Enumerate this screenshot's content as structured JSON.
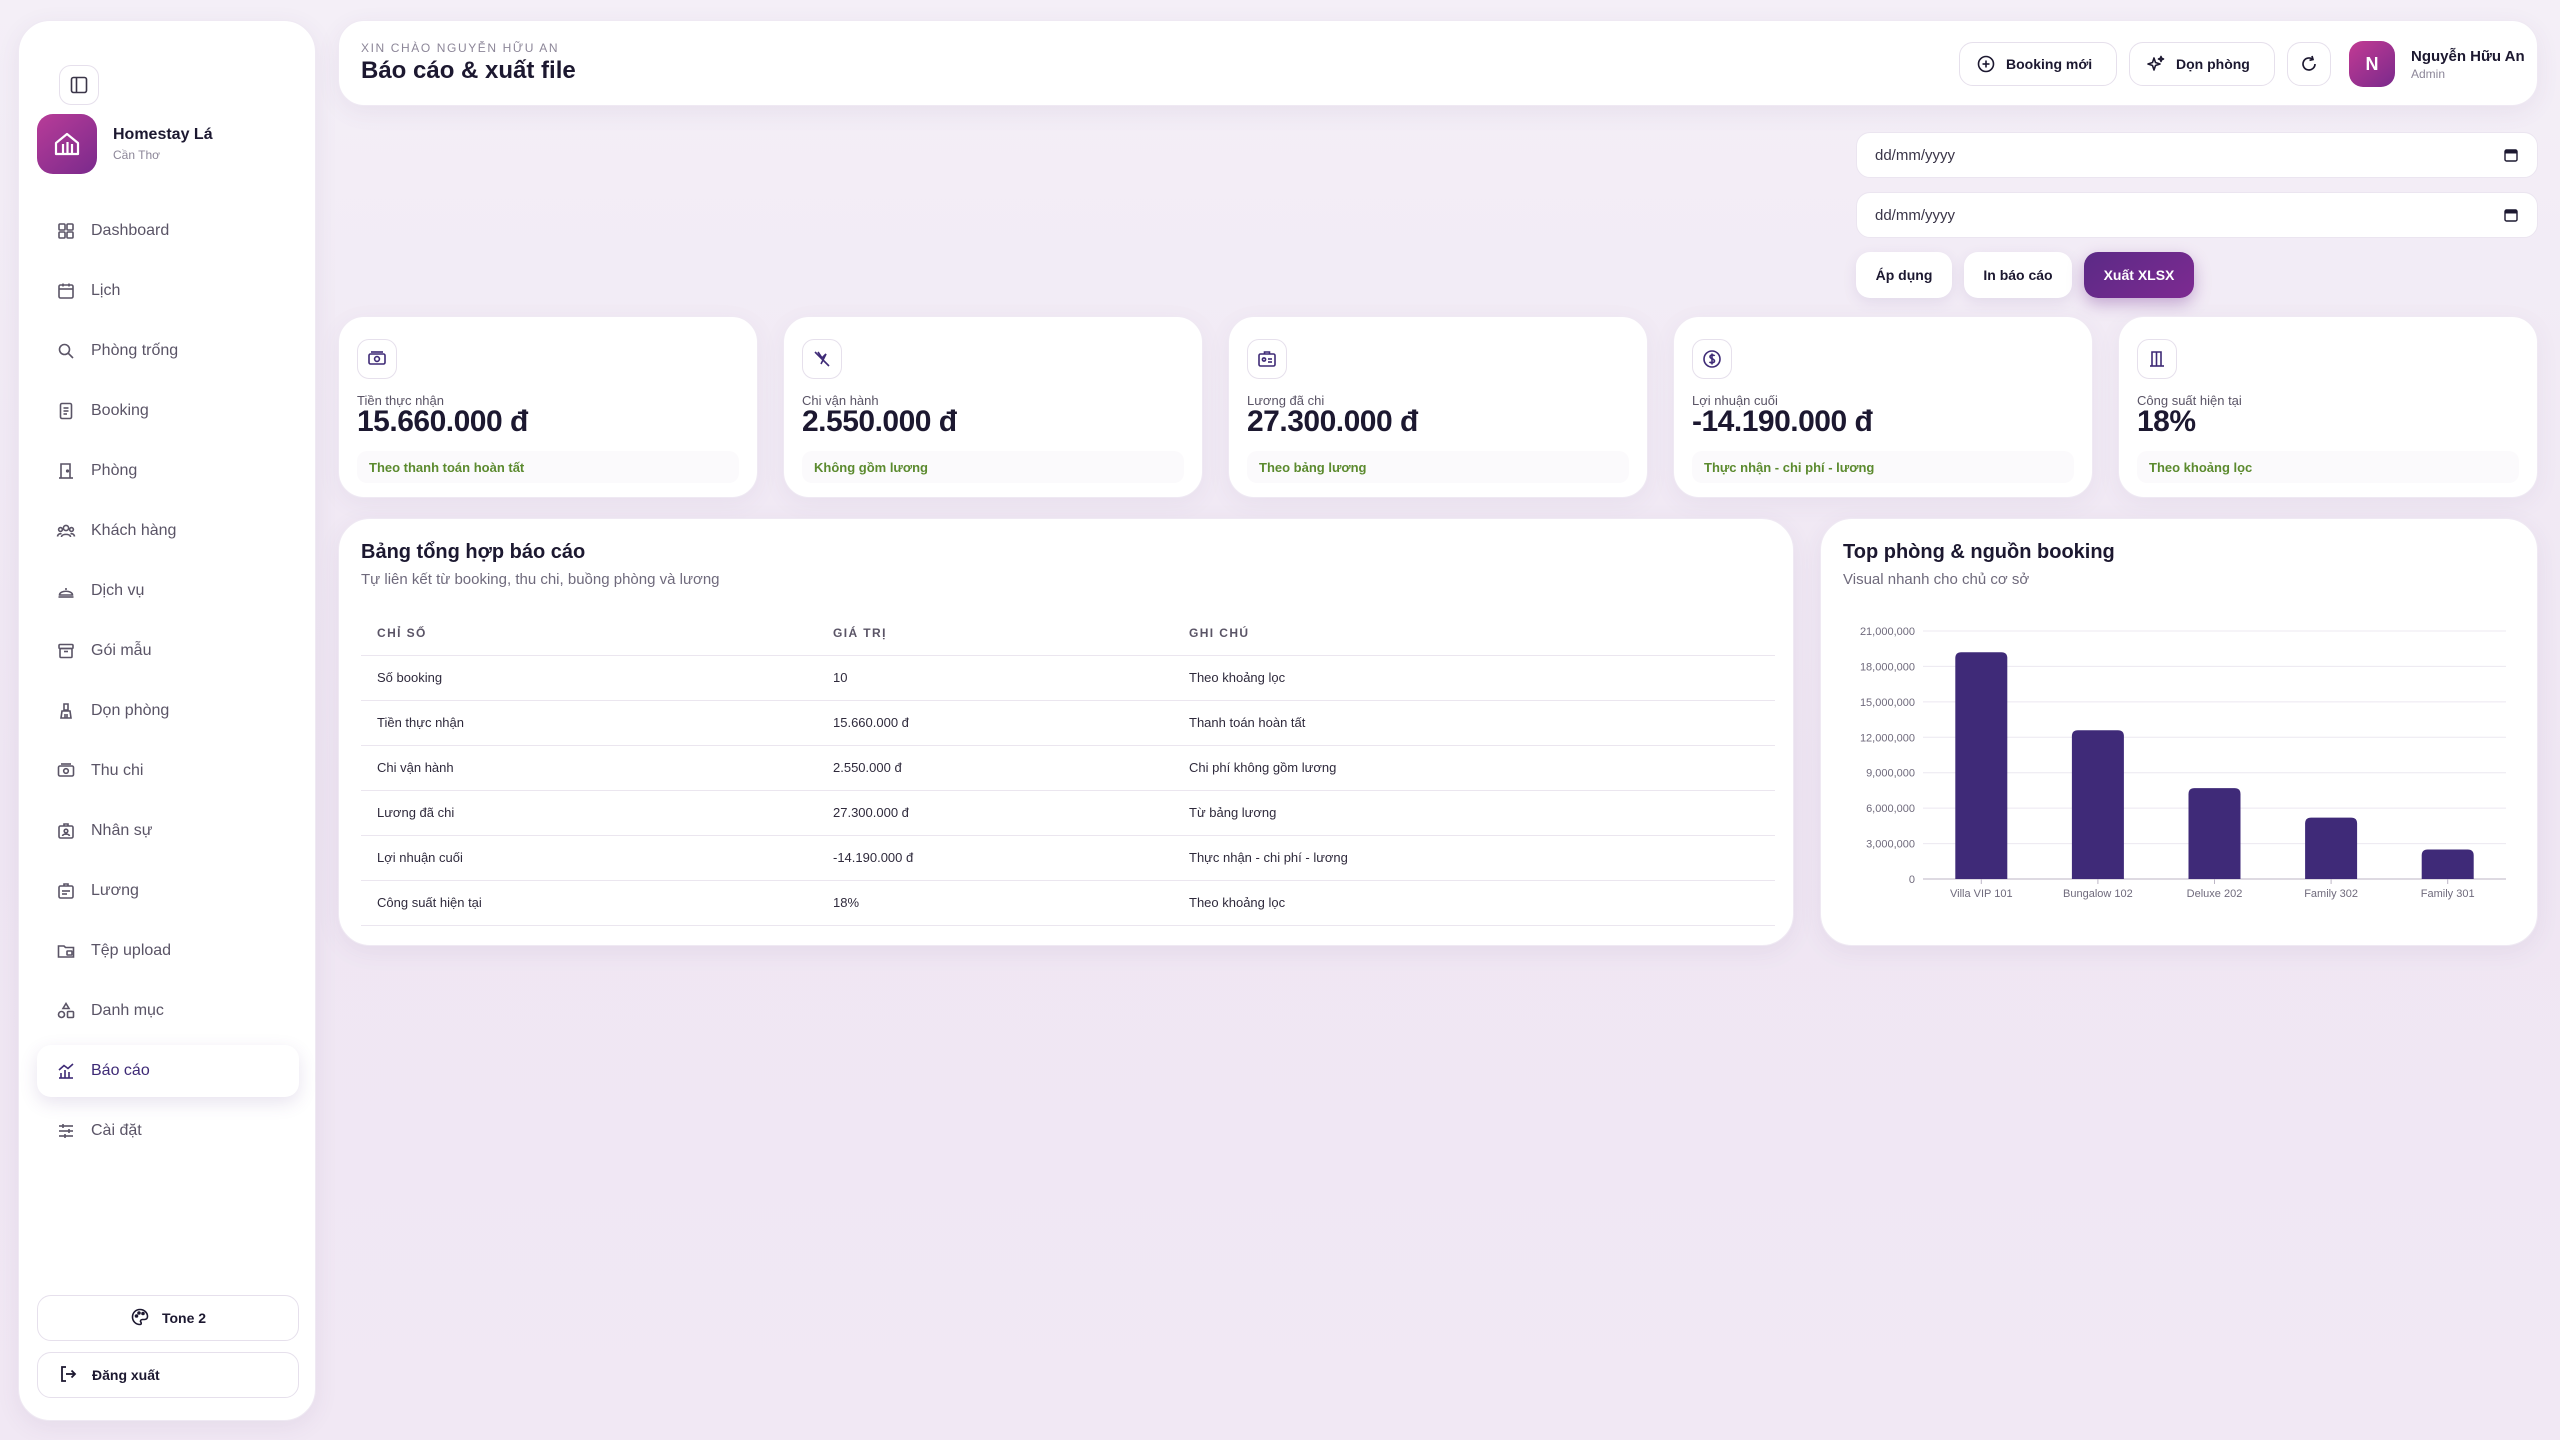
{
  "sidebar": {
    "brand": {
      "name": "Homestay Lá",
      "city": "Cần Thơ"
    },
    "items": [
      {
        "label": "Dashboard",
        "icon": "dashboard-icon"
      },
      {
        "label": "Lịch",
        "icon": "calendar-icon"
      },
      {
        "label": "Phòng trống",
        "icon": "search-icon"
      },
      {
        "label": "Booking",
        "icon": "booking-icon"
      },
      {
        "label": "Phòng",
        "icon": "door-icon"
      },
      {
        "label": "Khách hàng",
        "icon": "users-icon"
      },
      {
        "label": "Dịch vụ",
        "icon": "service-icon"
      },
      {
        "label": "Gói mẫu",
        "icon": "package-icon"
      },
      {
        "label": "Dọn phòng",
        "icon": "cleaning-icon"
      },
      {
        "label": "Thu chi",
        "icon": "money-icon"
      },
      {
        "label": "Nhân sự",
        "icon": "staff-icon"
      },
      {
        "label": "Lương",
        "icon": "salary-icon"
      },
      {
        "label": "Tệp upload",
        "icon": "folder-icon"
      },
      {
        "label": "Danh mục",
        "icon": "category-icon"
      },
      {
        "label": "Báo cáo",
        "icon": "report-icon",
        "active": true
      },
      {
        "label": "Cài đặt",
        "icon": "settings-icon"
      }
    ],
    "tone_label": "Tone 2",
    "logout_label": "Đăng xuất"
  },
  "header": {
    "greeting": "XIN CHÀO NGUYỄN HỮU AN",
    "title": "Báo cáo & xuất file",
    "new_booking_label": "Booking mới",
    "cleaning_label": "Dọn phòng",
    "user": {
      "initial": "N",
      "name": "Nguyễn Hữu An",
      "role": "Admin"
    }
  },
  "filters": {
    "date_from_placeholder": "dd/mm/yyyy",
    "date_to_placeholder": "dd/mm/yyyy",
    "apply_label": "Áp dụng",
    "print_label": "In báo cáo",
    "export_label": "Xuất XLSX"
  },
  "stats": [
    {
      "label": "Tiền thực nhận",
      "value": "15.660.000 đ",
      "note": "Theo thanh toán hoàn tất",
      "icon": "cash-icon"
    },
    {
      "label": "Chi vận hành",
      "value": "2.550.000 đ",
      "note": "Không gồm lương",
      "icon": "wrench-icon"
    },
    {
      "label": "Lương đã chi",
      "value": "27.300.000 đ",
      "note": "Theo bảng lương",
      "icon": "id-card-icon"
    },
    {
      "label": "Lợi nhuận cuối",
      "value": "-14.190.000 đ",
      "note": "Thực nhận - chi phí - lương",
      "icon": "dollar-circle-icon"
    },
    {
      "label": "Công suất hiện tại",
      "value": "18%",
      "note": "Theo khoảng lọc",
      "icon": "building-icon"
    }
  ],
  "summary": {
    "title": "Bảng tổng hợp báo cáo",
    "subtitle": "Tự liên kết từ booking, thu chi, buồng phòng và lương",
    "columns": [
      "CHỈ SỐ",
      "GIÁ TRỊ",
      "GHI CHÚ"
    ],
    "rows": [
      [
        "Số booking",
        "10",
        "Theo khoảng lọc"
      ],
      [
        "Tiền thực nhận",
        "15.660.000 đ",
        "Thanh toán hoàn tất"
      ],
      [
        "Chi vận hành",
        "2.550.000 đ",
        "Chi phí không gồm lương"
      ],
      [
        "Lương đã chi",
        "27.300.000 đ",
        "Từ bảng lương"
      ],
      [
        "Lợi nhuận cuối",
        "-14.190.000 đ",
        "Thực nhận - chi phí - lương"
      ],
      [
        "Công suất hiện tại",
        "18%",
        "Theo khoảng lọc"
      ]
    ]
  },
  "chart_card": {
    "title": "Top phòng & nguồn booking",
    "subtitle": "Visual nhanh cho chủ cơ sở"
  },
  "chart_data": {
    "type": "bar",
    "categories": [
      "Villa VIP 101",
      "Bungalow 102",
      "Deluxe 202",
      "Family 302",
      "Family 301"
    ],
    "values": [
      19200000,
      12600000,
      7700000,
      5200000,
      2500000
    ],
    "ylim": [
      0,
      21000000
    ],
    "yticks": [
      0,
      3000000,
      6000000,
      9000000,
      12000000,
      15000000,
      18000000,
      21000000
    ],
    "ytick_labels": [
      "0",
      "3,000,000",
      "6,000,000",
      "9,000,000",
      "12,000,000",
      "15,000,000",
      "18,000,000",
      "21,000,000"
    ],
    "grid": true,
    "bar_color": "#3f2a78"
  },
  "colors": {
    "accent": "#7a2a8c",
    "brand_gradient_start": "#b83c98",
    "note_green": "#5b8a2e",
    "active_text": "#3e2a76"
  }
}
